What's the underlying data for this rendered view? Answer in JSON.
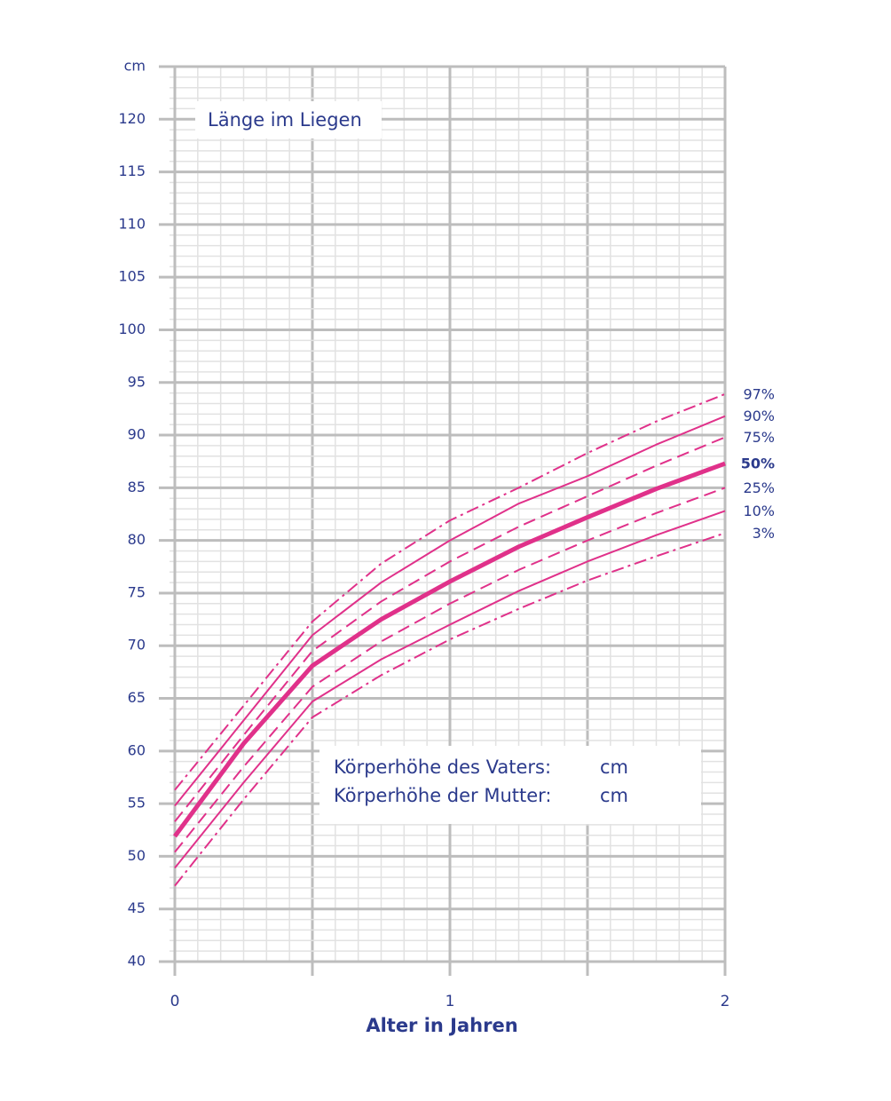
{
  "chart_data": {
    "type": "line",
    "title": "Länge im Liegen",
    "xlabel": "Alter in Jahren",
    "x": [
      0,
      0.25,
      0.5,
      0.75,
      1,
      1.25,
      1.5,
      1.75,
      2
    ],
    "xlim": [
      0,
      2
    ],
    "xticks": [
      0,
      1,
      2
    ],
    "ylim": [
      40,
      125
    ],
    "yticks": [
      40,
      45,
      50,
      55,
      60,
      65,
      70,
      75,
      80,
      85,
      90,
      95,
      100,
      105,
      110,
      115,
      120,
      {
        "value": 125,
        "label": "cm"
      }
    ],
    "grid": true,
    "series": [
      {
        "name": "97%",
        "color": "#e0318a",
        "dash": "dashdot",
        "width": 2,
        "values": [
          56.3,
          64.3,
          72.3,
          77.8,
          81.9,
          85.0,
          88.3,
          91.3,
          93.9
        ]
      },
      {
        "name": "90%",
        "color": "#e0318a",
        "dash": "solid",
        "width": 2,
        "values": [
          54.8,
          62.9,
          71.0,
          76.0,
          80.0,
          83.5,
          86.1,
          89.1,
          91.8
        ]
      },
      {
        "name": "75%",
        "color": "#e0318a",
        "dash": "dash",
        "width": 2,
        "values": [
          53.3,
          61.5,
          69.5,
          74.2,
          78.0,
          81.3,
          84.2,
          87.1,
          89.8
        ]
      },
      {
        "name": "50%",
        "color": "#e0318a",
        "dash": "solid",
        "width": 5,
        "bold": true,
        "values": [
          51.9,
          60.7,
          68.1,
          72.5,
          76.1,
          79.4,
          82.2,
          84.9,
          87.3
        ]
      },
      {
        "name": "25%",
        "color": "#e0318a",
        "dash": "dash",
        "width": 2,
        "values": [
          50.4,
          58.5,
          66.1,
          70.4,
          74.0,
          77.2,
          80.0,
          82.6,
          85.0
        ]
      },
      {
        "name": "10%",
        "color": "#e0318a",
        "dash": "solid",
        "width": 2,
        "values": [
          48.9,
          57.0,
          64.7,
          68.7,
          72.0,
          75.2,
          78.0,
          80.5,
          82.8
        ]
      },
      {
        "name": "3%",
        "color": "#e0318a",
        "dash": "dashdot",
        "width": 2,
        "values": [
          47.2,
          55.4,
          63.2,
          67.2,
          70.6,
          73.5,
          76.2,
          78.5,
          80.7
        ]
      }
    ],
    "info_box": {
      "rows": [
        [
          "Körperhöhe des Vaters:",
          "cm"
        ],
        [
          "Körperhöhe der Mutter:",
          "cm"
        ]
      ]
    }
  }
}
